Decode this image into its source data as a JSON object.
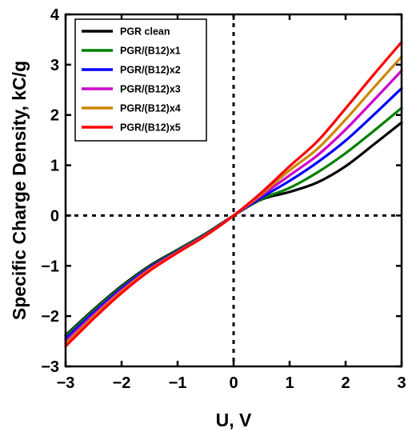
{
  "chart_data": {
    "type": "line",
    "title": "",
    "xlabel": "U, V",
    "ylabel": "Specific Charge Density, kC/g",
    "xlim": [
      -3,
      3
    ],
    "ylim": [
      -3,
      4
    ],
    "xticks": [
      -3,
      -2,
      -1,
      0,
      1,
      2,
      3
    ],
    "yticks": [
      -3,
      -2,
      -1,
      0,
      1,
      2,
      3,
      4
    ],
    "xtick_labels": [
      "−3",
      "−2",
      "−1",
      "0",
      "1",
      "2",
      "3"
    ],
    "ytick_labels": [
      "−3",
      "−2",
      "−1",
      "0",
      "1",
      "2",
      "3",
      "4"
    ],
    "reference_lines": [
      {
        "orientation": "horizontal",
        "value": 0,
        "style": "dotted"
      },
      {
        "orientation": "vertical",
        "value": 0,
        "style": "dotted"
      }
    ],
    "grid": false,
    "legend_position": "top-left",
    "x": [
      -3,
      -2.5,
      -2,
      -1.5,
      -1,
      -0.5,
      0,
      0.5,
      1,
      1.5,
      2,
      2.5,
      3
    ],
    "series": [
      {
        "name": "PGR clean",
        "color": "#000000",
        "values": [
          -2.38,
          -1.87,
          -1.4,
          -1.0,
          -0.68,
          -0.36,
          0,
          0.32,
          0.47,
          0.66,
          0.98,
          1.41,
          1.85
        ]
      },
      {
        "name": "PGR/(B12)x1",
        "color": "#008000",
        "values": [
          -2.4,
          -1.89,
          -1.42,
          -1.02,
          -0.69,
          -0.37,
          0,
          0.33,
          0.55,
          0.86,
          1.24,
          1.68,
          2.14
        ]
      },
      {
        "name": "PGR/(B12)x2",
        "color": "#0000ff",
        "values": [
          -2.45,
          -1.93,
          -1.45,
          -1.04,
          -0.71,
          -0.38,
          0,
          0.36,
          0.69,
          1.06,
          1.49,
          2.0,
          2.53
        ]
      },
      {
        "name": "PGR/(B12)x3",
        "color": "#cc00cc",
        "values": [
          -2.5,
          -1.97,
          -1.48,
          -1.06,
          -0.72,
          -0.39,
          0,
          0.4,
          0.8,
          1.2,
          1.71,
          2.29,
          2.88
        ]
      },
      {
        "name": "PGR/(B12)x4",
        "color": "#cc8800",
        "values": [
          -2.55,
          -2.01,
          -1.51,
          -1.08,
          -0.73,
          -0.39,
          0,
          0.43,
          0.9,
          1.33,
          1.91,
          2.54,
          3.16
        ]
      },
      {
        "name": "PGR/(B12)x5",
        "color": "#ff0000",
        "values": [
          -2.6,
          -2.05,
          -1.54,
          -1.1,
          -0.74,
          -0.4,
          0,
          0.46,
          0.98,
          1.48,
          2.13,
          2.8,
          3.45
        ]
      }
    ]
  }
}
